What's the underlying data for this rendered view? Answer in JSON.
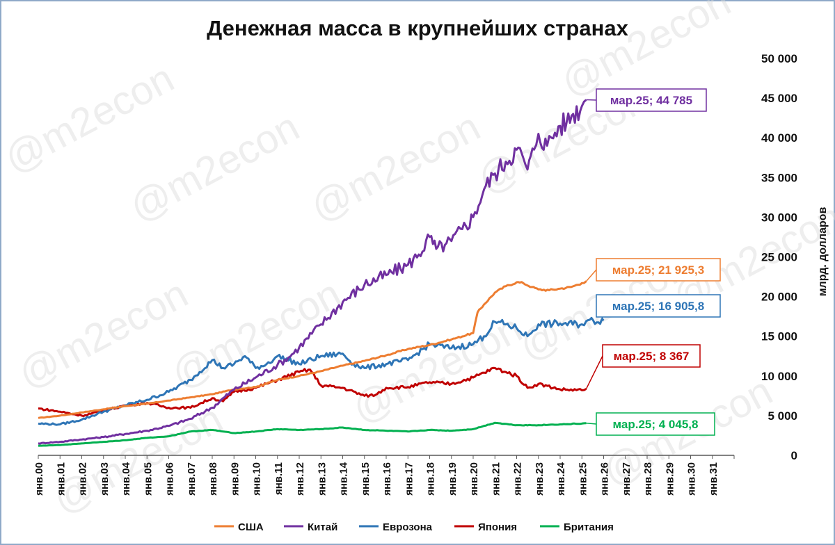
{
  "chart_data": {
    "type": "line",
    "title": "Денежная масса в крупнейших странах",
    "ylabel": "млрд. долларов",
    "xlabel": "",
    "ylim": [
      0,
      50000
    ],
    "yticks": [
      0,
      5000,
      10000,
      15000,
      20000,
      25000,
      30000,
      35000,
      40000,
      45000,
      50000
    ],
    "ytick_labels": [
      "0",
      "5 000",
      "10 000",
      "15 000",
      "20 000",
      "25 000",
      "30 000",
      "35 000",
      "40 000",
      "45 000",
      "50 000"
    ],
    "x_range": [
      2000,
      2032
    ],
    "x_tick_labels": [
      "янв.00",
      "янв.01",
      "янв.02",
      "янв.03",
      "янв.04",
      "янв.05",
      "янв.06",
      "янв.07",
      "янв.08",
      "янв.09",
      "янв.10",
      "янв.11",
      "янв.12",
      "янв.13",
      "янв.14",
      "янв.15",
      "янв.16",
      "янв.17",
      "янв.18",
      "янв.19",
      "янв.20",
      "янв.21",
      "янв.22",
      "янв.23",
      "янв.24",
      "янв.25",
      "янв.26",
      "янв.27",
      "янв.28",
      "янв.29",
      "янв.30",
      "янв.31"
    ],
    "legend_position": "bottom",
    "watermark": "@m2econ",
    "series": [
      {
        "name": "США",
        "color": "#ed7d31",
        "x": [
          2000,
          2001,
          2002,
          2003,
          2004,
          2005,
          2006,
          2007,
          2008,
          2009,
          2010,
          2011,
          2012,
          2013,
          2014,
          2015,
          2016,
          2017,
          2018,
          2019,
          2020,
          2020.2,
          2020.5,
          2021,
          2021.5,
          2022,
          2022.3,
          2022.7,
          2023,
          2023.5,
          2024,
          2024.5,
          2025,
          2025.2
        ],
        "values": [
          4700,
          5000,
          5400,
          5800,
          6200,
          6500,
          6900,
          7300,
          7700,
          8300,
          8600,
          9500,
          10000,
          10600,
          11300,
          11900,
          12600,
          13400,
          13900,
          14600,
          15400,
          18000,
          19000,
          20500,
          21300,
          21800,
          21700,
          21200,
          20900,
          20800,
          21000,
          21200,
          21700,
          21925.3
        ],
        "callout": "мар.25;  21 925,3"
      },
      {
        "name": "Китай",
        "color": "#7030a0",
        "x": [
          2000,
          2001,
          2002,
          2003,
          2004,
          2005,
          2006,
          2007,
          2008,
          2009,
          2010,
          2011,
          2011.5,
          2012,
          2013,
          2014,
          2015,
          2016,
          2017,
          2017.5,
          2018,
          2018.3,
          2018.7,
          2019,
          2019.5,
          2020,
          2020.5,
          2021,
          2021.5,
          2022,
          2022.3,
          2022.5,
          2022.8,
          2023,
          2023.4,
          2023.6,
          2024,
          2024.3,
          2024.6,
          2025,
          2025.2
        ],
        "values": [
          1500,
          1700,
          2000,
          2300,
          2700,
          3100,
          3700,
          4600,
          6000,
          8300,
          9800,
          11400,
          12300,
          13600,
          16500,
          19300,
          21500,
          22700,
          24000,
          25300,
          27500,
          26000,
          26500,
          27000,
          28500,
          30000,
          33500,
          35500,
          37000,
          38500,
          37500,
          36000,
          38500,
          40500,
          39000,
          40000,
          41500,
          42000,
          43000,
          44000,
          44785
        ],
        "callout": "мар.25; 44 785"
      },
      {
        "name": "Еврозона",
        "color": "#2e75b6",
        "x": [
          2000,
          2001,
          2002,
          2003,
          2004,
          2005,
          2006,
          2007,
          2008,
          2008.5,
          2009,
          2009.5,
          2010,
          2010.5,
          2011,
          2012,
          2013,
          2014,
          2014.5,
          2015,
          2016,
          2017,
          2018,
          2019,
          2020,
          2020.5,
          2021,
          2021.5,
          2022,
          2022.5,
          2023,
          2024,
          2025,
          2025.2,
          2026
        ],
        "values": [
          4000,
          3900,
          4500,
          5500,
          6300,
          7000,
          8000,
          9500,
          12000,
          11000,
          11500,
          12500,
          11000,
          11500,
          12500,
          11500,
          12500,
          12800,
          11500,
          11000,
          11500,
          12000,
          14000,
          13500,
          14000,
          15000,
          16800,
          16500,
          16000,
          15000,
          16500,
          16600,
          16500,
          16905.8,
          17000
        ],
        "callout": "мар.25;  16 905,8"
      },
      {
        "name": "Япония",
        "color": "#c00000",
        "x": [
          2000,
          2001,
          2002,
          2003,
          2004,
          2005,
          2006,
          2007,
          2008,
          2008.5,
          2009,
          2010,
          2011,
          2012,
          2012.5,
          2013,
          2014,
          2015,
          2015.5,
          2016,
          2017,
          2018,
          2019,
          2020,
          2021,
          2021.5,
          2022,
          2022.5,
          2023,
          2024,
          2025,
          2025.2
        ],
        "values": [
          5900,
          5500,
          5000,
          5600,
          6300,
          6600,
          6000,
          6000,
          7200,
          6800,
          8000,
          8500,
          9500,
          10500,
          10800,
          8800,
          8500,
          7500,
          7600,
          8500,
          8600,
          9200,
          9000,
          9800,
          11000,
          10500,
          10000,
          8500,
          9000,
          8300,
          8200,
          8367
        ],
        "callout": "мар.25; 8 367"
      },
      {
        "name": "Британия",
        "color": "#00b050",
        "x": [
          2000,
          2001,
          2002,
          2003,
          2004,
          2005,
          2006,
          2007,
          2008,
          2009,
          2010,
          2011,
          2012,
          2013,
          2014,
          2015,
          2016,
          2017,
          2018,
          2019,
          2020,
          2021,
          2022,
          2023,
          2024,
          2025,
          2025.2
        ],
        "values": [
          1200,
          1300,
          1500,
          1700,
          1900,
          2200,
          2400,
          3000,
          3200,
          2800,
          3000,
          3300,
          3200,
          3300,
          3500,
          3200,
          3100,
          3000,
          3200,
          3100,
          3300,
          4100,
          3800,
          3800,
          3900,
          4000,
          4045.8
        ],
        "callout": "мар.25;  4 045,8"
      }
    ]
  }
}
